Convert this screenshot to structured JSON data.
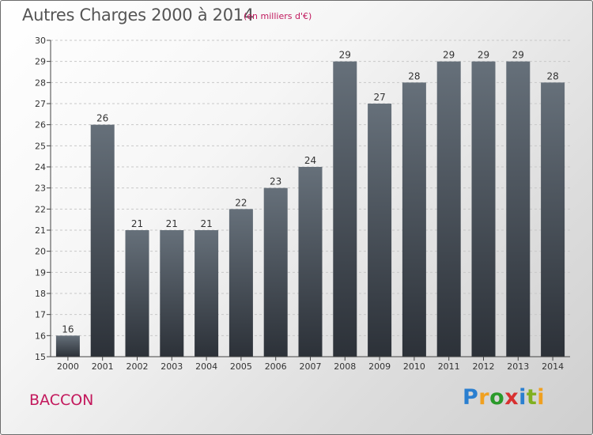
{
  "header": {
    "title": "Autres Charges 2000 à 2014",
    "subtitle": "(en milliers d'€)"
  },
  "footer": {
    "commune": "BACCON",
    "logo": {
      "letters": [
        "P",
        "r",
        "o",
        "x",
        "i",
        "t",
        "i"
      ],
      "colors": [
        "#2a7fd0",
        "#f0a020",
        "#2a9a2a",
        "#d83030",
        "#2a7fd0",
        "#80b020",
        "#f0a020"
      ]
    }
  },
  "colors": {
    "bar_top": "#66707a",
    "bar_bottom": "#2c3138",
    "grid": "#c8c8c8",
    "axis": "#444444"
  },
  "chart_data": {
    "type": "bar",
    "title": "Autres Charges 2000 à 2014",
    "subtitle": "(en milliers d'€)",
    "xlabel": "",
    "ylabel": "",
    "categories": [
      "2000",
      "2001",
      "2002",
      "2003",
      "2004",
      "2005",
      "2006",
      "2007",
      "2008",
      "2009",
      "2010",
      "2011",
      "2012",
      "2013",
      "2014"
    ],
    "values": [
      16,
      26,
      21,
      21,
      21,
      22,
      23,
      24,
      29,
      27,
      28,
      29,
      29,
      29,
      28
    ],
    "data_labels": [
      "16",
      "26",
      "21",
      "21",
      "21",
      "22",
      "23",
      "24",
      "29",
      "27",
      "28",
      "29",
      "29",
      "29",
      "28"
    ],
    "ylim": [
      15,
      30
    ],
    "yticks": [
      15,
      16,
      17,
      18,
      19,
      20,
      21,
      22,
      23,
      24,
      25,
      26,
      27,
      28,
      29,
      30
    ],
    "grid": true,
    "grid_style": "dashed-horizontal",
    "legend": "none"
  }
}
